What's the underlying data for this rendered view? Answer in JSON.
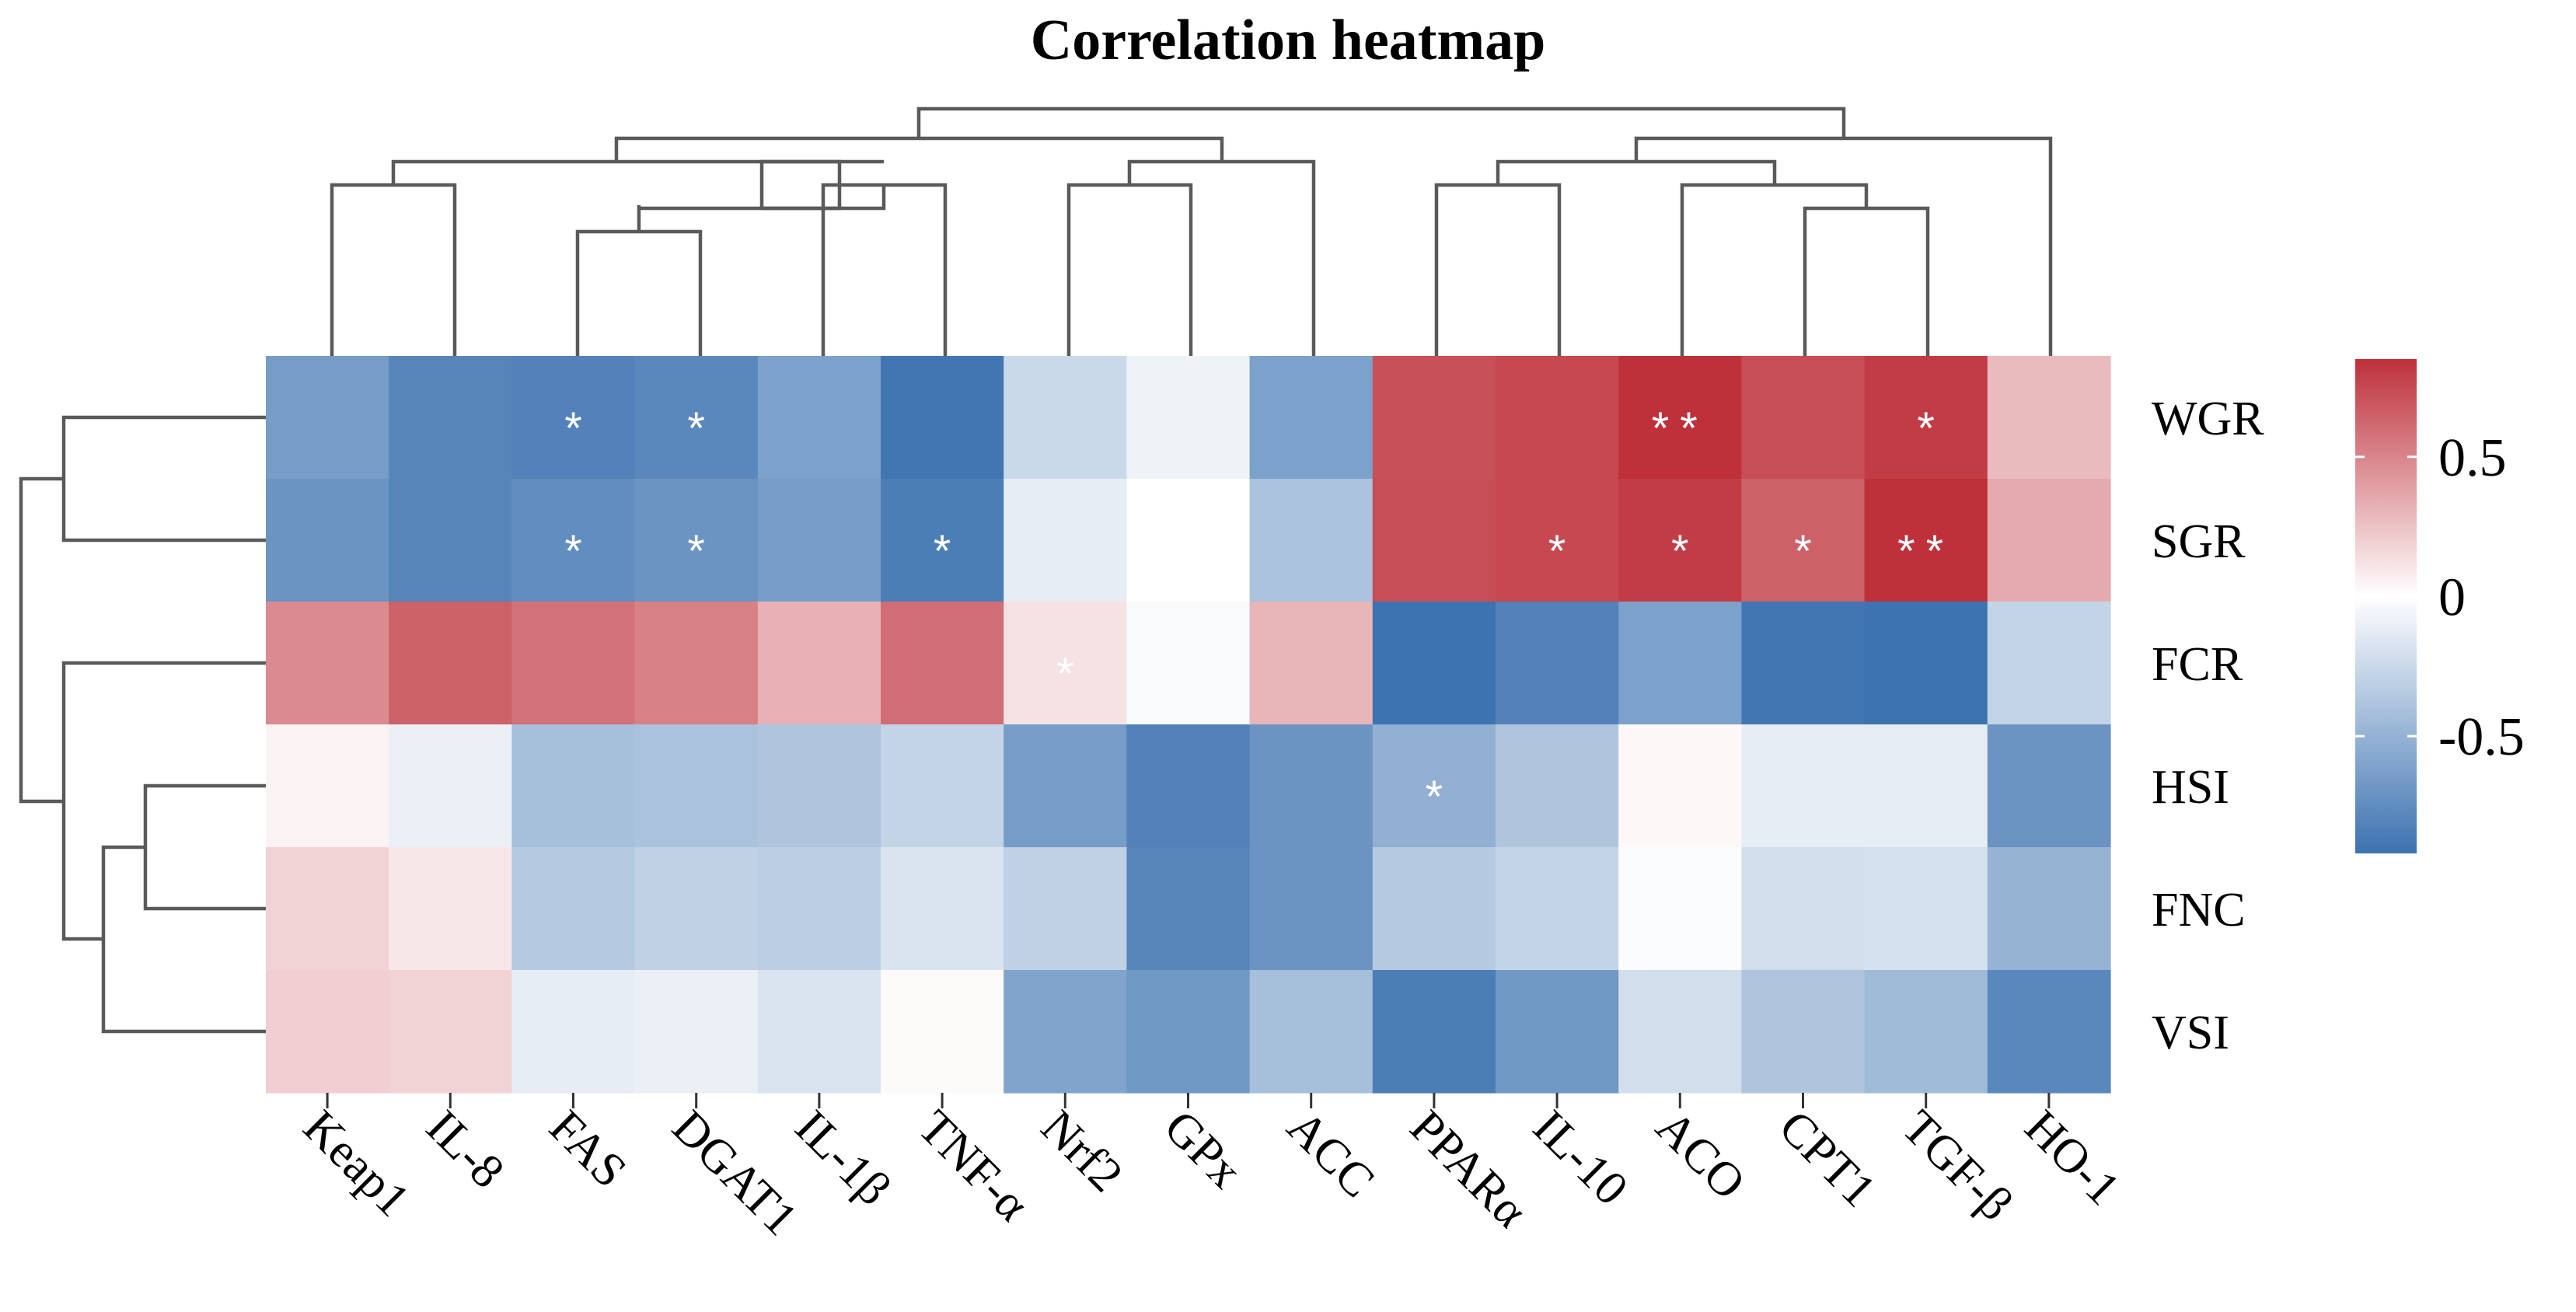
{
  "chart_data": {
    "type": "heatmap",
    "title": "Correlation heatmap",
    "rows": [
      "WGR",
      "SGR",
      "FCR",
      "HSI",
      "FNC",
      "VSI"
    ],
    "columns": [
      "Keap1",
      "IL-8",
      "FAS",
      "DGAT1",
      "IL-1β",
      "TNF-α",
      "Nrf2",
      "GPx",
      "ACC",
      "PPARα",
      "IL-10",
      "ACO",
      "CPT1",
      "TGF-β",
      "HO-1"
    ],
    "values": [
      [
        -0.65,
        -0.8,
        -0.82,
        -0.78,
        -0.62,
        -0.9,
        -0.25,
        -0.08,
        -0.62,
        0.72,
        0.75,
        0.85,
        0.73,
        0.8,
        0.28
      ],
      [
        -0.7,
        -0.8,
        -0.75,
        -0.7,
        -0.65,
        -0.85,
        -0.12,
        0.0,
        -0.4,
        0.73,
        0.75,
        0.8,
        0.65,
        0.85,
        0.35
      ],
      [
        0.48,
        0.65,
        0.58,
        0.52,
        0.32,
        0.6,
        0.12,
        -0.03,
        0.3,
        -0.92,
        -0.82,
        -0.62,
        -0.9,
        -0.92,
        -0.28
      ],
      [
        0.05,
        -0.1,
        -0.42,
        -0.4,
        -0.38,
        -0.28,
        -0.65,
        -0.82,
        -0.7,
        -0.52,
        -0.38,
        0.03,
        -0.12,
        -0.12,
        -0.7
      ],
      [
        0.18,
        0.1,
        -0.35,
        -0.3,
        -0.32,
        -0.18,
        -0.3,
        -0.8,
        -0.7,
        -0.35,
        -0.28,
        -0.02,
        -0.22,
        -0.2,
        -0.5
      ],
      [
        0.2,
        0.18,
        -0.12,
        -0.1,
        -0.18,
        0.02,
        -0.6,
        -0.68,
        -0.42,
        -0.85,
        -0.68,
        -0.22,
        -0.38,
        -0.45,
        -0.78
      ]
    ],
    "annotations": [
      [
        "",
        "",
        "*",
        "*",
        "",
        "",
        "",
        "",
        "",
        "",
        "",
        "**",
        "",
        "*",
        ""
      ],
      [
        "",
        "",
        "*",
        "*",
        "",
        "*",
        "",
        "",
        "",
        "",
        "*",
        "*",
        "*",
        "**",
        ""
      ],
      [
        "",
        "",
        "",
        "",
        "",
        "",
        "*",
        "",
        "",
        "",
        "",
        "",
        "",
        "",
        ""
      ],
      [
        "",
        "",
        "",
        "",
        "",
        "",
        "",
        "",
        "",
        "*",
        "",
        "",
        "",
        "",
        ""
      ],
      [
        "",
        "",
        "",
        "",
        "",
        "",
        "",
        "",
        "",
        "",
        "",
        "",
        "",
        "",
        ""
      ],
      [
        "",
        "",
        "",
        "",
        "",
        "",
        "",
        "",
        "",
        "",
        "",
        "",
        "",
        "",
        ""
      ]
    ],
    "color_scale": {
      "min": -0.92,
      "max": 0.85,
      "low_color": "#3d73b0",
      "mid_color": "#ffffff",
      "high_color": "#be303a",
      "ticks": [
        0.5,
        0,
        -0.5
      ],
      "tick_labels": [
        "0.5",
        "0",
        "-0.5"
      ]
    },
    "legend_position": "right",
    "column_dendrogram": "top",
    "row_dendrogram": "left"
  }
}
